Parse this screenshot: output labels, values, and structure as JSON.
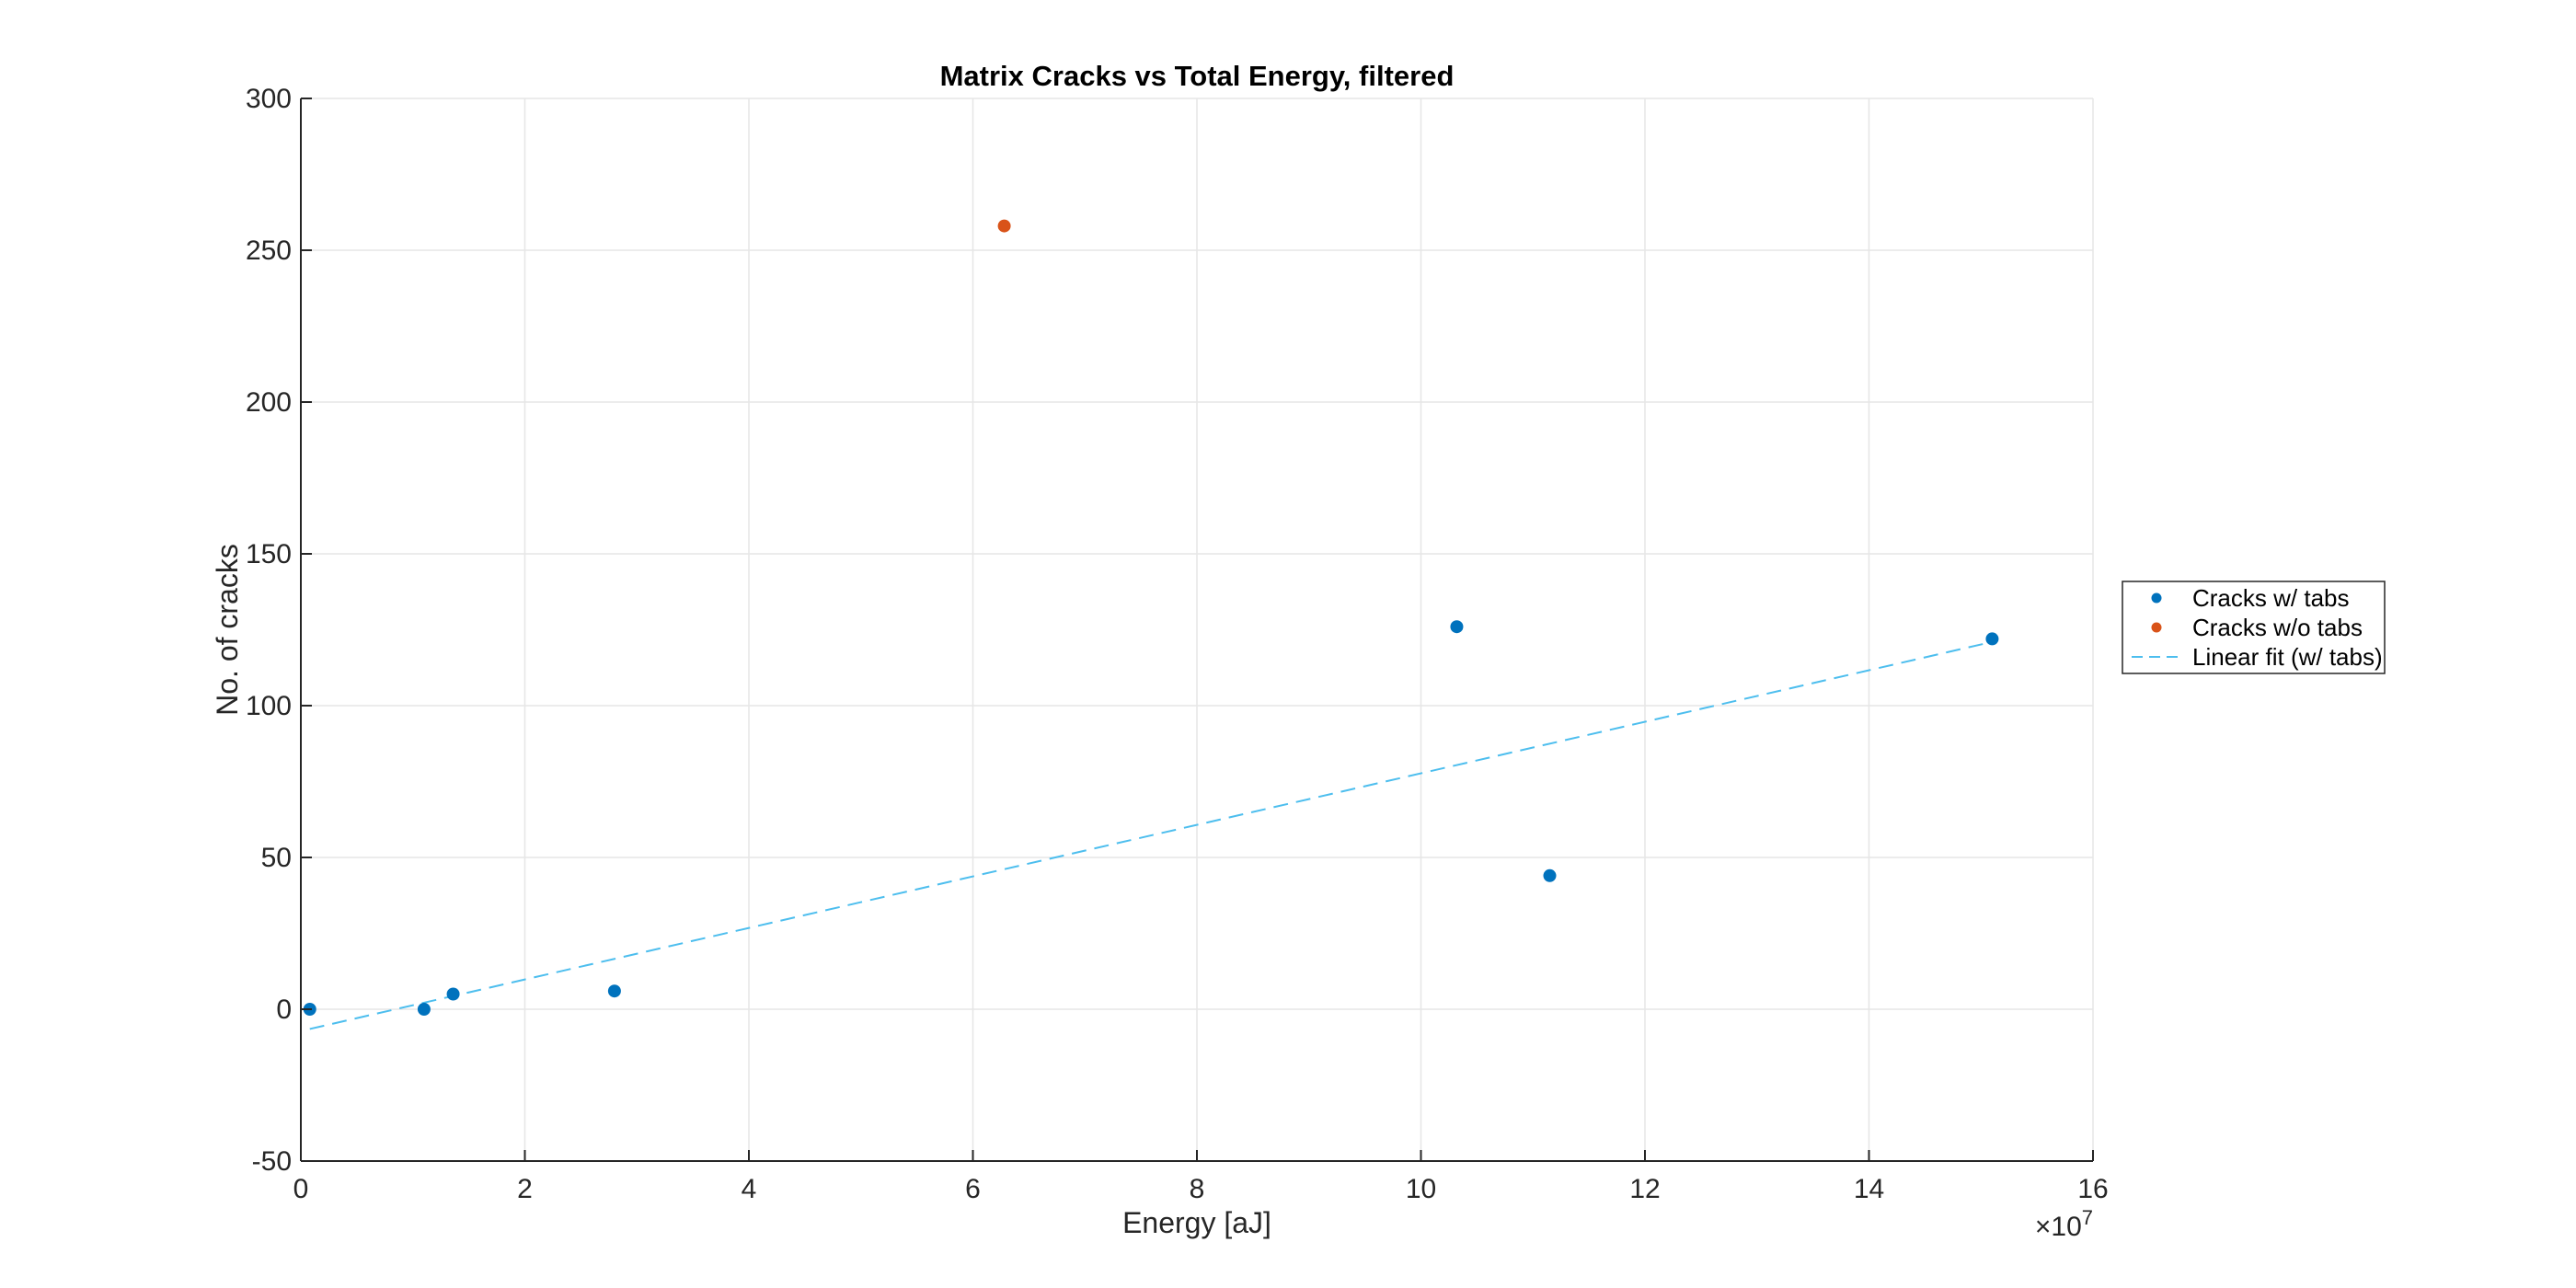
{
  "chart_data": {
    "type": "scatter",
    "title": "Matrix Cracks vs Total Energy, filtered",
    "xlabel": "Energy [aJ]",
    "ylabel": "No. of cracks",
    "x_exponent_base": "×10",
    "x_exponent_power": "7",
    "xlim": [
      0,
      16
    ],
    "ylim": [
      -50,
      300
    ],
    "x_ticks": [
      0,
      2,
      4,
      6,
      8,
      10,
      12,
      14,
      16
    ],
    "y_ticks": [
      -50,
      0,
      50,
      100,
      150,
      200,
      250,
      300
    ],
    "x_tick_labels": [
      "0",
      "2",
      "4",
      "6",
      "8",
      "10",
      "12",
      "14",
      "16"
    ],
    "y_tick_labels": [
      "-50",
      "0",
      "50",
      "100",
      "150",
      "200",
      "250",
      "300"
    ],
    "grid": true,
    "legend_position": "outside-right",
    "series": [
      {
        "name": "Cracks w/ tabs",
        "type": "scatter",
        "color": "#0072BD",
        "x": [
          0.08,
          1.1,
          1.36,
          2.8,
          10.32,
          11.15,
          15.1
        ],
        "y": [
          0,
          0,
          5,
          6,
          126,
          44,
          122
        ]
      },
      {
        "name": "Cracks w/o tabs",
        "type": "scatter",
        "color": "#D95319",
        "x": [
          6.28
        ],
        "y": [
          258
        ]
      },
      {
        "name": "Linear fit (w/ tabs)",
        "type": "line",
        "style": "dashed",
        "color": "#4DBEEE",
        "x": [
          0.08,
          15.1
        ],
        "y": [
          -6.5,
          121
        ]
      }
    ]
  }
}
